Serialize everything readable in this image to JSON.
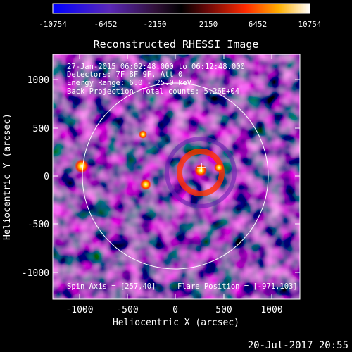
{
  "colorbar": {
    "tick_labels": [
      "-10754",
      "-6452",
      "-2150",
      "2150",
      "6452",
      "10754"
    ],
    "min": -10754,
    "max": 10754,
    "colors": [
      "#0000ff",
      "#6a1fb0",
      "#3a1040",
      "#000000",
      "#7a0a0a",
      "#ff3000",
      "#ffb000",
      "#ffffff"
    ]
  },
  "title": "Reconstructed RHESSI Image",
  "info": {
    "time_range": "27-Jan-2015 06:02:48.000 to 06:12:48.000",
    "detectors": "Detectors: 7F 8F 9F, Att 0",
    "energy": "Energy Range: 6.0 - 25.0 keV",
    "method": "Back Projection",
    "counts": "Total counts: 5.26E+04"
  },
  "spin_axis": "Spin Axis = [257,40]",
  "flare_position": "Flare Position = [-971,103]",
  "axes": {
    "xlabel": "Heliocentric X (arcsec)",
    "ylabel": "Heliocentric Y (arcsec)",
    "xticks": [
      "-1000",
      "-500",
      "0",
      "500",
      "1000"
    ],
    "yticks": [
      "1000",
      "500",
      "0",
      "-500",
      "-1000"
    ],
    "xrange": [
      -1270,
      1290
    ],
    "yrange": [
      -1280,
      1270
    ]
  },
  "footer_date": "20-Jul-2017 20:55"
}
